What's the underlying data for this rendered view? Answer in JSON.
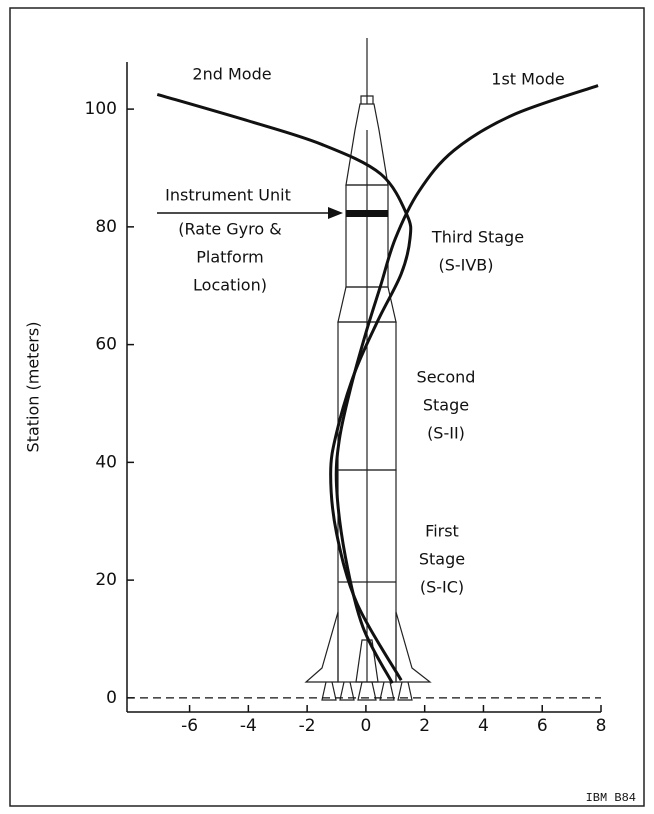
{
  "chart_data": {
    "type": "line",
    "y_label": "Station (meters)",
    "xlim": [
      -8.13,
      8
    ],
    "ylim": [
      -2.4,
      108
    ],
    "xticks": [
      -6,
      -4,
      -2,
      0,
      2,
      4,
      6,
      8
    ],
    "yticks": [
      0,
      20,
      40,
      60,
      80,
      100
    ],
    "series": [
      {
        "name": "1st Mode",
        "color": "#111111",
        "x": [
          7.9,
          5,
          3,
          1.8,
          1.0,
          0.5,
          0,
          -0.5,
          -0.9,
          -1.0,
          -0.7,
          -0.1,
          0.9
        ],
        "values": [
          104,
          99,
          93,
          86,
          78,
          70,
          62,
          53,
          44,
          36,
          24,
          12,
          2.5
        ]
      },
      {
        "name": "2nd Mode",
        "color": "#111111",
        "x": [
          -7.1,
          -4,
          -1.5,
          0.5,
          1.4,
          1.5,
          1.2,
          0.4,
          -0.4,
          -1.0,
          -1.2,
          -1.0,
          -0.3,
          1.2
        ],
        "values": [
          102.5,
          98,
          94,
          89,
          82,
          78,
          72,
          64,
          55,
          45,
          38,
          28,
          16,
          3
        ]
      }
    ],
    "annotations": [
      "Instrument Unit",
      "(Rate Gyro &",
      "Platform",
      "Location)",
      "Third Stage",
      "(S-IVB)",
      "Second",
      "Stage",
      "(S-II)",
      "First",
      "Stage",
      "(S-IC)"
    ],
    "footer": "IBM B84"
  }
}
